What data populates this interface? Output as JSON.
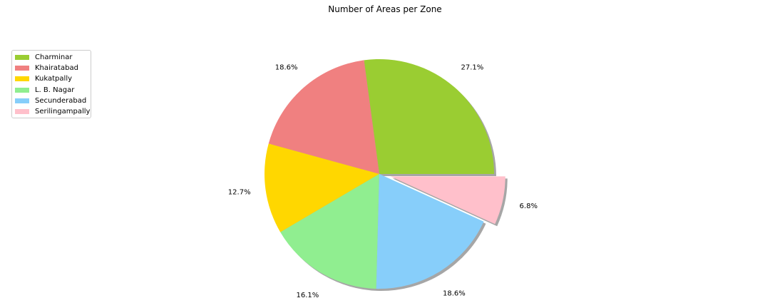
{
  "chart_data": {
    "type": "pie",
    "title": "Number of Areas per Zone",
    "categories": [
      "Charminar",
      "Khairatabad",
      "Kukatpally",
      "L. B. Nagar",
      "Secunderabad",
      "Serilingampally"
    ],
    "values": [
      27.1,
      18.6,
      12.7,
      16.1,
      18.6,
      6.8
    ],
    "labels": [
      "27.1%",
      "18.6%",
      "12.7%",
      "16.1%",
      "18.6%",
      "6.8%"
    ],
    "colors": [
      "#9acd32",
      "#f08080",
      "#ffd700",
      "#90ee90",
      "#87cefa",
      "#ffc0cb"
    ],
    "explode": [
      0,
      0,
      0,
      0,
      0,
      0.1
    ],
    "shadow": true,
    "start_angle": 0,
    "direction": "counterclockwise",
    "legend_position": "upper-left"
  }
}
